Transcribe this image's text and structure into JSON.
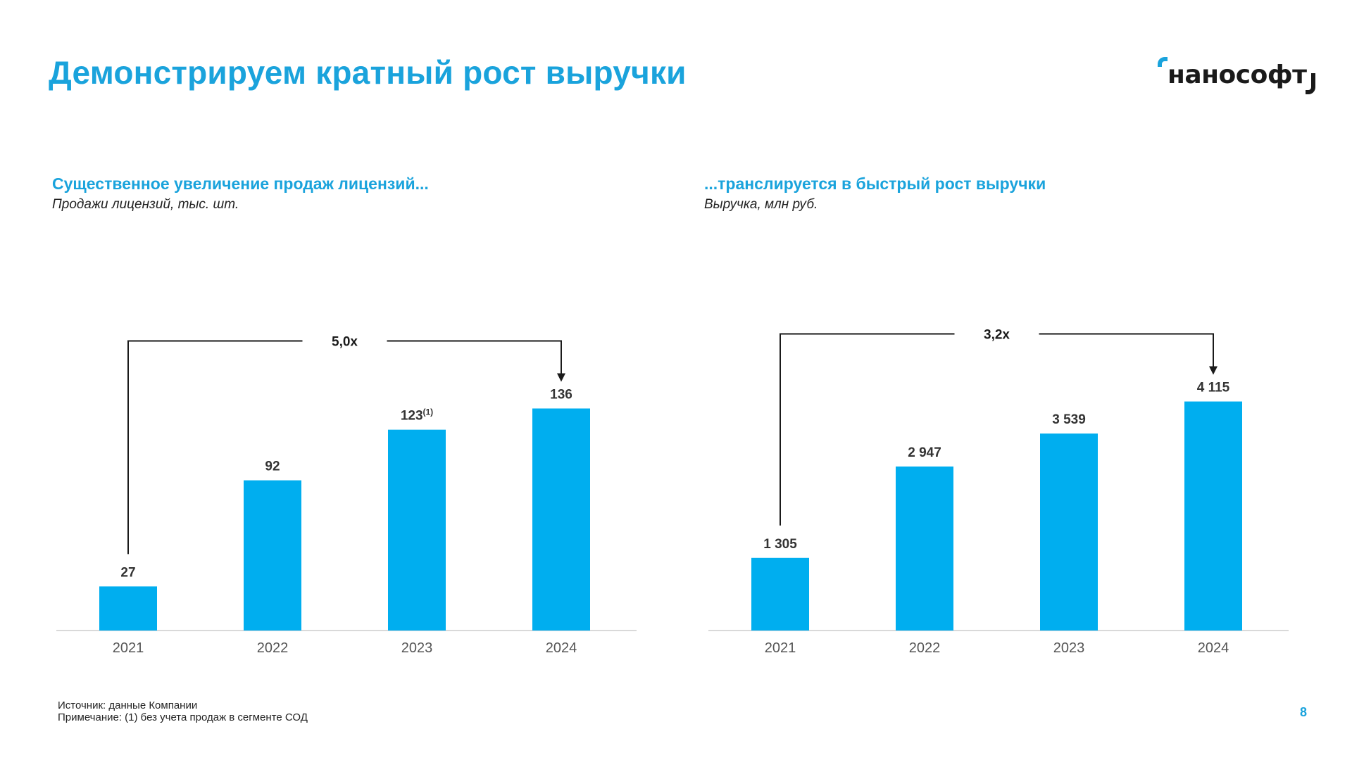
{
  "header": {
    "title": "Демонстрируем кратный рост выручки",
    "logo_text": "наноcофт"
  },
  "colors": {
    "accent": "#1aa3dc",
    "bar": "#00aeef",
    "text": "#333333",
    "axis": "#d9d9d9"
  },
  "chart_data": [
    {
      "type": "bar",
      "title": "Существенное увеличение продаж лицензий...",
      "subtitle": "Продажи лицензий, тыс. шт.",
      "categories": [
        "2021",
        "2022",
        "2023",
        "2024"
      ],
      "values": [
        27,
        92,
        123,
        136
      ],
      "value_labels": [
        "27",
        "92",
        "123",
        "136"
      ],
      "label_superscripts": [
        "",
        "",
        "(1)",
        ""
      ],
      "growth": {
        "label": "5,0x",
        "from": "2021",
        "to": "2024"
      },
      "ylim": [
        0,
        150
      ],
      "grid": false,
      "legend": "none"
    },
    {
      "type": "bar",
      "title": "...транслируется в быстрый рост выручки",
      "subtitle": "Выручка, млн руб.",
      "categories": [
        "2021",
        "2022",
        "2023",
        "2024"
      ],
      "values": [
        1305,
        2947,
        3539,
        4115
      ],
      "value_labels": [
        "1 305",
        "2 947",
        "3 539",
        "4 115"
      ],
      "label_superscripts": [
        "",
        "",
        "",
        ""
      ],
      "growth": {
        "label": "3,2x",
        "from": "2021",
        "to": "2024"
      },
      "ylim": [
        0,
        4400
      ],
      "grid": false,
      "legend": "none"
    }
  ],
  "footer": {
    "source": "Источник: данные Компании",
    "note": "Примечание: (1) без учета продаж в сегменте СОД",
    "page_number": "8"
  }
}
